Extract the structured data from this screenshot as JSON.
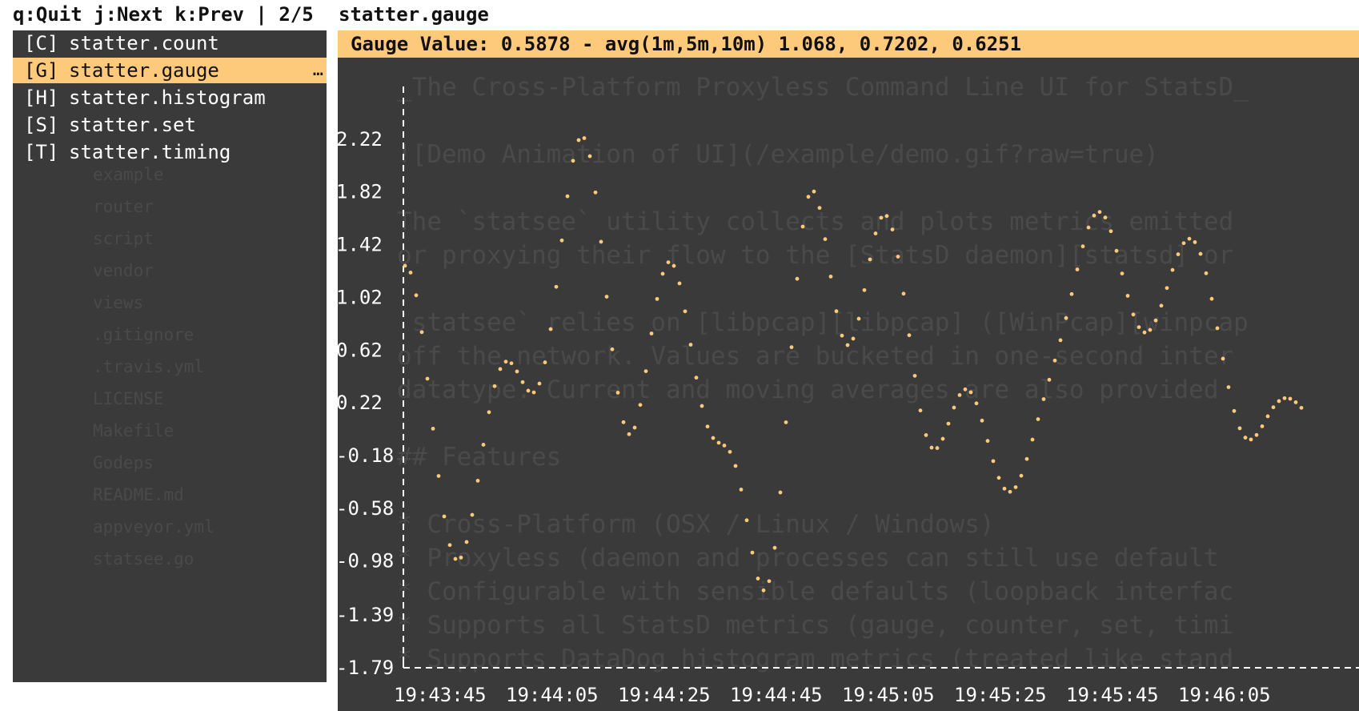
{
  "topbar": {
    "help": "q:Quit j:Next k:Prev | 2/5",
    "panel_title": "statter.gauge"
  },
  "menu": {
    "items": [
      {
        "key": "[C]",
        "label": "statter.count",
        "selected": false
      },
      {
        "key": "[G]",
        "label": "statter.gauge",
        "selected": true,
        "more": "…"
      },
      {
        "key": "[H]",
        "label": "statter.histogram",
        "selected": false
      },
      {
        "key": "[S]",
        "label": "statter.set",
        "selected": false
      },
      {
        "key": "[T]",
        "label": "statter.timing",
        "selected": false
      }
    ]
  },
  "panel": {
    "header": "Gauge Value: 0.5878 - avg(1m,5m,10m) 1.068, 0.7202, 0.6251"
  },
  "colors": {
    "accent": "#fdc97b",
    "background": "#3a3a3a",
    "point": "#fdc97b",
    "text": "#ffffff"
  },
  "chart_data": {
    "type": "scatter",
    "series_name": "statter.gauge",
    "title": "",
    "xlabel": "",
    "ylabel": "",
    "ylim": [
      -1.79,
      2.62
    ],
    "yticks": [
      "2.22",
      "1.82",
      "1.42",
      "1.02",
      "0.62",
      "0.22",
      "-0.18",
      "-0.58",
      "-0.98",
      "-1.39",
      "-1.79"
    ],
    "ytick_values": [
      2.22,
      1.82,
      1.42,
      1.02,
      0.62,
      0.22,
      -0.18,
      -0.58,
      -0.98,
      -1.39,
      -1.79
    ],
    "xticks": [
      "19:43:45",
      "19:44:05",
      "19:44:25",
      "19:44:45",
      "19:45:05",
      "19:45:25",
      "19:45:45",
      "19:46:05"
    ],
    "xtick_seconds": [
      0,
      20,
      40,
      60,
      80,
      100,
      120,
      140
    ],
    "x_seconds_from_first_tick": [
      -6,
      -5,
      -4,
      -3,
      -2,
      -1,
      0,
      1,
      2,
      3,
      4,
      5,
      6,
      7,
      8,
      9,
      10,
      11,
      12,
      13,
      14,
      15,
      16,
      17,
      18,
      19,
      20,
      21,
      22,
      23,
      24,
      25,
      26,
      27,
      28,
      29,
      30,
      31,
      32,
      33,
      34,
      35,
      36,
      37,
      38,
      39,
      40,
      41,
      42,
      43,
      44,
      45,
      46,
      47,
      48,
      49,
      50,
      51,
      52,
      53,
      54,
      55,
      56,
      57,
      58,
      59,
      60,
      61,
      62,
      63,
      64,
      65,
      66,
      67,
      68,
      69,
      70,
      71,
      72,
      73,
      74,
      75,
      76,
      77,
      78,
      79,
      80,
      81,
      82,
      83,
      84,
      85,
      86,
      87,
      88,
      89,
      90,
      91,
      92,
      93,
      94,
      95,
      96,
      97,
      98,
      99,
      100,
      101,
      102,
      103,
      104,
      105,
      106,
      107,
      108,
      109,
      110,
      111,
      112,
      113,
      114,
      115,
      116,
      117,
      118,
      119,
      120,
      121,
      122,
      123,
      124,
      125,
      126,
      127,
      128,
      129,
      130,
      131,
      132,
      133,
      134,
      135,
      136,
      137,
      138,
      139,
      140,
      141,
      142,
      143,
      144,
      145,
      146,
      147,
      148,
      149,
      150,
      151,
      152,
      153,
      154,
      155,
      156,
      157,
      158
    ],
    "values": [
      1.26,
      1.208,
      1.036,
      0.756,
      0.403,
      0.024,
      -0.335,
      -0.642,
      -0.859,
      -0.964,
      -0.954,
      -0.836,
      -0.63,
      -0.371,
      -0.098,
      0.149,
      0.346,
      0.476,
      0.532,
      0.52,
      0.458,
      0.377,
      0.312,
      0.299,
      0.366,
      0.527,
      0.779,
      1.1,
      1.452,
      1.787,
      2.056,
      2.213,
      2.228,
      2.091,
      1.816,
      1.442,
      1.025,
      0.626,
      0.297,
      0.073,
      -0.018,
      0.032,
      0.204,
      0.46,
      0.746,
      1.008,
      1.199,
      1.286,
      1.259,
      1.126,
      0.914,
      0.661,
      0.411,
      0.196,
      0.04,
      -0.047,
      -0.083,
      -0.104,
      -0.152,
      -0.259,
      -0.438,
      -0.671,
      -0.916,
      -1.113,
      -1.203,
      -1.133,
      -0.88,
      -0.46,
      0.072,
      0.642,
      1.161,
      1.557,
      1.783,
      1.823,
      1.699,
      1.462,
      1.178,
      0.915,
      0.73,
      0.658,
      0.707,
      0.858,
      1.075,
      1.308,
      1.505,
      1.624,
      1.637,
      1.535,
      1.329,
      1.048,
      0.733,
      0.425,
      0.162,
      -0.025,
      -0.12,
      -0.123,
      -0.053,
      0.062,
      0.184,
      0.279,
      0.322,
      0.3,
      0.216,
      0.085,
      -0.069,
      -0.222,
      -0.349,
      -0.431,
      -0.455,
      -0.42,
      -0.333,
      -0.206,
      -0.059,
      0.096,
      0.248,
      0.395,
      0.541,
      0.695,
      0.863,
      1.045,
      1.232,
      1.407,
      1.55,
      1.641,
      1.668,
      1.626,
      1.522,
      1.373,
      1.201,
      1.032,
      0.89,
      0.794,
      0.754,
      0.773,
      0.845,
      0.957,
      1.091,
      1.228,
      1.347,
      1.431,
      1.465,
      1.439,
      1.35,
      1.203,
      1.009,
      0.786,
      0.555,
      0.339,
      0.158,
      0.027,
      -0.044,
      -0.058,
      -0.024,
      0.042,
      0.118,
      0.186,
      0.233,
      0.255,
      0.251,
      0.224,
      0.182
    ]
  }
}
